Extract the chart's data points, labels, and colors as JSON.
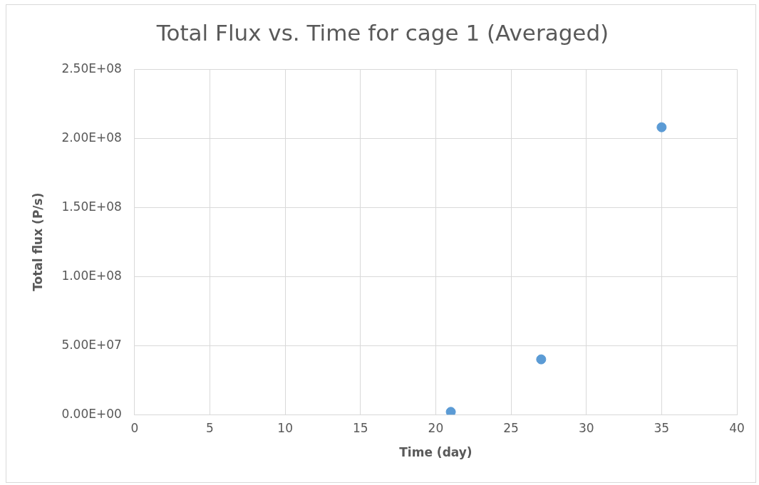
{
  "chart_data": {
    "type": "scatter",
    "title": "Total Flux vs. Time for cage 1 (Averaged)",
    "xlabel": "Time (day)",
    "ylabel": "Total flux (P/s)",
    "x": [
      21,
      27,
      35
    ],
    "series": [
      {
        "color": "#5b9bd5",
        "values": [
          2000000,
          40000000,
          208000000
        ]
      }
    ],
    "xlim": [
      0,
      40
    ],
    "xticks": [
      0,
      5,
      10,
      15,
      20,
      25,
      30,
      35,
      40
    ],
    "ylim": [
      0,
      250000000
    ],
    "yticks": [
      {
        "value": 0,
        "label": "0.00E+00"
      },
      {
        "value": 50000000,
        "label": "5.00E+07"
      },
      {
        "value": 100000000,
        "label": "1.00E+08"
      },
      {
        "value": 150000000,
        "label": "1.50E+08"
      },
      {
        "value": 200000000,
        "label": "2.00E+08"
      },
      {
        "value": 250000000,
        "label": "2.50E+08"
      }
    ],
    "grid": true,
    "marker": "circle"
  }
}
